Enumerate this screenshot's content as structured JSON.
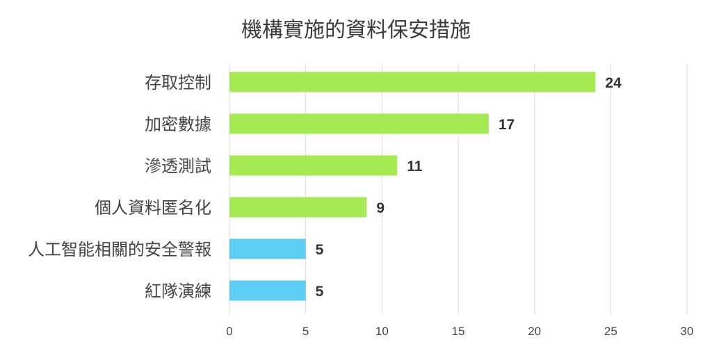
{
  "chart_data": {
    "type": "bar",
    "orientation": "horizontal",
    "title": "機構實施的資料保安措施",
    "xlabel": "",
    "ylabel": "",
    "xlim": [
      0,
      30
    ],
    "xticks": [
      0,
      5,
      10,
      15,
      20,
      25,
      30
    ],
    "grid": true,
    "legend": "none",
    "categories": [
      "存取控制",
      "加密數據",
      "滲透測試",
      "個人資料匿名化",
      "人工智能相關的安全警報",
      "紅隊演練"
    ],
    "values": [
      24,
      17,
      11,
      9,
      5,
      5
    ],
    "bar_colors": [
      "#a5ea52",
      "#a5ea52",
      "#a5ea52",
      "#a5ea52",
      "#5ecdf3",
      "#5ecdf3"
    ]
  }
}
